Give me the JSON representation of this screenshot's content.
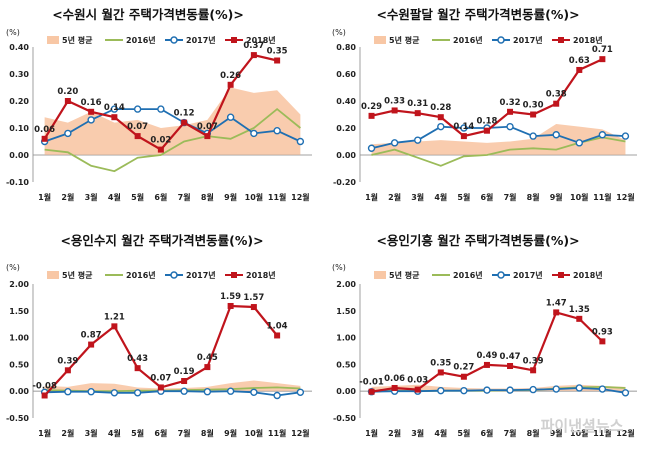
{
  "watermark": "파이낸셜뉴스",
  "colors": {
    "avg5": "#f8c7a5",
    "y2016": "#9bbb59",
    "y2017": "#1f6fb2",
    "y2018": "#c0141c"
  },
  "chart_data": [
    {
      "type": "line",
      "title": "<수원시 월간 주택가격변동률(%)>",
      "unit": "(%)",
      "categories": [
        "1월",
        "2월",
        "3월",
        "4월",
        "5월",
        "6월",
        "7월",
        "8월",
        "9월",
        "10월",
        "11월",
        "12월"
      ],
      "ylim": [
        -0.1,
        0.4
      ],
      "yticks": [
        "-0.10",
        "0.00",
        "0.10",
        "0.20",
        "0.30",
        "0.40"
      ],
      "ytick_values": [
        -0.1,
        0.0,
        0.1,
        0.2,
        0.3,
        0.4
      ],
      "legend": [
        "5년 평균",
        "2016년",
        "2017년",
        "2018년"
      ],
      "series": [
        {
          "name": "5년 평균",
          "kind": "area",
          "values": [
            0.14,
            0.12,
            0.16,
            0.12,
            0.13,
            0.1,
            0.11,
            0.13,
            0.25,
            0.23,
            0.24,
            0.15
          ]
        },
        {
          "name": "2016년",
          "kind": "line",
          "values": [
            0.02,
            0.01,
            -0.04,
            -0.06,
            -0.01,
            0.0,
            0.05,
            0.07,
            0.06,
            0.1,
            0.17,
            0.1
          ]
        },
        {
          "name": "2017년",
          "kind": "line-marker",
          "values": [
            0.05,
            0.08,
            0.13,
            0.17,
            0.17,
            0.17,
            0.12,
            0.08,
            0.14,
            0.08,
            0.09,
            0.05
          ]
        },
        {
          "name": "2018년",
          "kind": "line-square",
          "values": [
            0.06,
            0.2,
            0.16,
            0.14,
            0.07,
            0.02,
            0.12,
            0.07,
            0.26,
            0.37,
            0.35,
            null
          ],
          "labels": [
            "0.06",
            "0.20",
            "0.16",
            "0.14",
            "0.07",
            "0.02",
            "0.12",
            "0.07",
            "0.26",
            "0.37",
            "0.35",
            ""
          ]
        }
      ]
    },
    {
      "type": "line",
      "title": "<수원팔달 월간 주택가격변동률(%)>",
      "unit": "(%)",
      "categories": [
        "1월",
        "2월",
        "3월",
        "4월",
        "5월",
        "6월",
        "7월",
        "8월",
        "9월",
        "10월",
        "11월",
        "12월"
      ],
      "ylim": [
        -0.2,
        0.8
      ],
      "yticks": [
        "-0.20",
        "0.00",
        "0.20",
        "0.40",
        "0.60",
        "0.80"
      ],
      "ytick_values": [
        -0.2,
        0.0,
        0.2,
        0.4,
        0.6,
        0.8
      ],
      "legend": [
        "5년 평균",
        "2016년",
        "2017년",
        "2018년"
      ],
      "series": [
        {
          "name": "5년 평균",
          "kind": "area",
          "values": [
            0.08,
            0.09,
            0.1,
            0.11,
            0.1,
            0.09,
            0.1,
            0.12,
            0.23,
            0.21,
            0.19,
            0.11
          ]
        },
        {
          "name": "2016년",
          "kind": "line",
          "values": [
            0.0,
            0.04,
            -0.02,
            -0.08,
            -0.01,
            0.0,
            0.04,
            0.05,
            0.04,
            0.09,
            0.13,
            0.1
          ]
        },
        {
          "name": "2017년",
          "kind": "line-marker",
          "values": [
            0.05,
            0.09,
            0.11,
            0.21,
            0.2,
            0.2,
            0.21,
            0.14,
            0.15,
            0.09,
            0.15,
            0.14
          ]
        },
        {
          "name": "2018년",
          "kind": "line-square",
          "values": [
            0.29,
            0.33,
            0.31,
            0.28,
            0.14,
            0.18,
            0.32,
            0.3,
            0.38,
            0.63,
            0.71,
            null
          ],
          "labels": [
            "0.29",
            "0.33",
            "0.31",
            "0.28",
            "0.14",
            "0.18",
            "0.32",
            "0.30",
            "0.38",
            "0.63",
            "0.71",
            ""
          ]
        }
      ]
    },
    {
      "type": "line",
      "title": "<용인수지 월간 주택가격변동률(%)>",
      "unit": "(%)",
      "categories": [
        "1월",
        "2월",
        "3월",
        "4월",
        "5월",
        "6월",
        "7월",
        "8월",
        "9월",
        "10월",
        "11월",
        "12월"
      ],
      "ylim": [
        -0.5,
        2.0
      ],
      "yticks": [
        "-0.50",
        "0.00",
        "0.50",
        "1.00",
        "1.50",
        "2.00"
      ],
      "ytick_values": [
        -0.5,
        0.0,
        0.5,
        1.0,
        1.5,
        2.0
      ],
      "legend": [
        "5년 평균",
        "2016년",
        "2017년",
        "2018년"
      ],
      "series": [
        {
          "name": "5년 평균",
          "kind": "area",
          "values": [
            0.1,
            0.08,
            0.15,
            0.14,
            0.07,
            0.05,
            0.06,
            0.08,
            0.15,
            0.2,
            0.15,
            0.1
          ]
        },
        {
          "name": "2016년",
          "kind": "line",
          "values": [
            0.02,
            0.01,
            0.0,
            0.0,
            0.01,
            0.01,
            0.02,
            0.03,
            0.04,
            0.06,
            0.07,
            0.05
          ]
        },
        {
          "name": "2017년",
          "kind": "line-marker",
          "values": [
            -0.02,
            -0.01,
            -0.01,
            -0.03,
            -0.03,
            0.0,
            0.0,
            -0.01,
            0.0,
            -0.02,
            -0.08,
            -0.02
          ]
        },
        {
          "name": "2018년",
          "kind": "line-square",
          "values": [
            -0.08,
            0.39,
            0.87,
            1.21,
            0.43,
            0.07,
            0.19,
            0.45,
            1.59,
            1.57,
            1.04,
            null
          ],
          "labels": [
            "-0.08",
            "0.39",
            "0.87",
            "1.21",
            "0.43",
            "0.07",
            "0.19",
            "0.45",
            "1.59",
            "1.57",
            "1.04",
            ""
          ]
        }
      ]
    },
    {
      "type": "line",
      "title": "<용인기흥 월간 주택가격변동률(%)>",
      "unit": "(%)",
      "categories": [
        "1월",
        "2월",
        "3월",
        "4월",
        "5월",
        "6월",
        "7월",
        "8월",
        "9월",
        "10월",
        "11월",
        "12월"
      ],
      "ylim": [
        -0.5,
        2.0
      ],
      "yticks": [
        "-0.50",
        "0.00",
        "0.50",
        "1.00",
        "1.50",
        "2.00"
      ],
      "ytick_values": [
        -0.5,
        0.0,
        0.5,
        1.0,
        1.5,
        2.0
      ],
      "legend": [
        "5년 평균",
        "2016년",
        "2017년",
        "2018년"
      ],
      "series": [
        {
          "name": "5년 평균",
          "kind": "area",
          "values": [
            0.08,
            0.1,
            0.12,
            0.08,
            0.06,
            0.05,
            0.05,
            0.06,
            0.1,
            0.12,
            0.1,
            0.08
          ]
        },
        {
          "name": "2016년",
          "kind": "line",
          "values": [
            0.0,
            0.01,
            0.0,
            0.01,
            0.01,
            0.01,
            0.02,
            0.02,
            0.05,
            0.07,
            0.08,
            0.06
          ]
        },
        {
          "name": "2017년",
          "kind": "line-marker",
          "values": [
            -0.01,
            0.0,
            0.0,
            0.01,
            0.01,
            0.02,
            0.02,
            0.03,
            0.04,
            0.06,
            0.04,
            -0.03
          ]
        },
        {
          "name": "2018년",
          "kind": "line-square",
          "values": [
            -0.01,
            0.06,
            0.03,
            0.35,
            0.27,
            0.49,
            0.47,
            0.39,
            1.47,
            1.35,
            0.93,
            null
          ],
          "labels": [
            "-0.01",
            "0.06",
            "0.03",
            "0.35",
            "0.27",
            "0.49",
            "0.47",
            "0.39",
            "1.47",
            "1.35",
            "0.93",
            ""
          ]
        }
      ]
    }
  ]
}
